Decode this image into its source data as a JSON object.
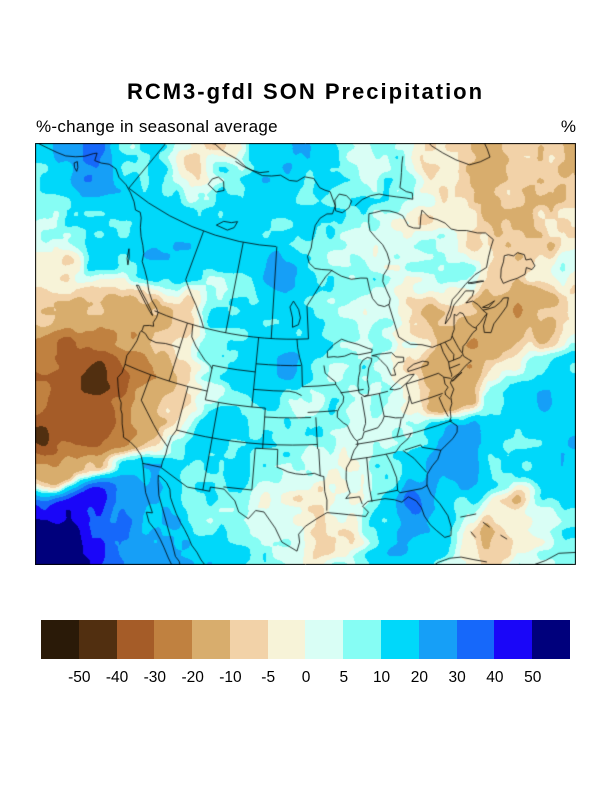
{
  "title": "RCM3-gfdl SON Precipitation",
  "subtitle": "%-change in seasonal average",
  "unit_label": "%",
  "colorbar": {
    "tick_labels": [
      "-50",
      "-40",
      "-30",
      "-20",
      "-10",
      "-5",
      "0",
      "5",
      "10",
      "20",
      "30",
      "40",
      "50"
    ],
    "colors": [
      "#2a1a08",
      "#512f10",
      "#a55c28",
      "#c08140",
      "#d8ad6d",
      "#f2d2a8",
      "#f7f3d8",
      "#d9fef5",
      "#86fdf4",
      "#00d8fa",
      "#169ff7",
      "#1668fa",
      "#1a06f8",
      "#00007c"
    ]
  },
  "chart_data": {
    "type": "heatmap",
    "title": "RCM3-gfdl SON Precipitation",
    "subtitle": "%-change in seasonal average",
    "units": "%",
    "region": "North America (Lambert conformal conic view)",
    "levels": [
      -50,
      -40,
      -30,
      -20,
      -10,
      -5,
      0,
      5,
      10,
      20,
      30,
      40,
      50
    ],
    "palette": [
      "#2a1a08",
      "#512f10",
      "#a55c28",
      "#c08140",
      "#d8ad6d",
      "#f2d2a8",
      "#f7f3d8",
      "#d9fef5",
      "#86fdf4",
      "#00d8fa",
      "#169ff7",
      "#1668fa",
      "#1a06f8",
      "#00007c"
    ],
    "grid": {
      "nx": 20,
      "ny": 14,
      "description": "percent change in seasonal-average precipitation, coarse grid spanning the plot window left-to-right, top-to-bottom",
      "values": [
        [
          12,
          25,
          30,
          12,
          10,
          6,
          -3,
          -3,
          15,
          22,
          12,
          6,
          8,
          4,
          -5,
          -6,
          -10,
          -8,
          -10,
          -15
        ],
        [
          12,
          18,
          28,
          12,
          10,
          6,
          -2,
          8,
          18,
          15,
          10,
          6,
          6,
          3,
          -5,
          -8,
          -12,
          -10,
          -8,
          -12
        ],
        [
          8,
          10,
          15,
          14,
          16,
          14,
          10,
          14,
          16,
          14,
          12,
          8,
          5,
          3,
          -4,
          -6,
          -8,
          -10,
          -6,
          -8
        ],
        [
          6,
          8,
          12,
          16,
          18,
          16,
          14,
          16,
          14,
          12,
          10,
          6,
          4,
          2,
          3,
          -5,
          -6,
          -4,
          -8,
          -6
        ],
        [
          0,
          -6,
          8,
          14,
          12,
          15,
          12,
          12,
          16,
          22,
          12,
          8,
          6,
          4,
          6,
          8,
          -4,
          -6,
          4,
          -5
        ],
        [
          -6,
          -10,
          -14,
          -12,
          -8,
          -5,
          6,
          10,
          14,
          15,
          10,
          6,
          4,
          -5,
          -8,
          -6,
          -12,
          -16,
          -8,
          -4
        ],
        [
          -22,
          -30,
          -30,
          -22,
          -12,
          -6,
          4,
          10,
          15,
          15,
          12,
          8,
          6,
          -5,
          -14,
          -16,
          -16,
          -10,
          -8,
          -4
        ],
        [
          -28,
          -35,
          -38,
          -28,
          -15,
          -6,
          6,
          12,
          15,
          30,
          10,
          6,
          2,
          -4,
          -16,
          -22,
          -12,
          -4,
          8,
          12
        ],
        [
          -30,
          -35,
          -42,
          -30,
          -18,
          -8,
          5,
          8,
          10,
          8,
          5,
          3,
          3,
          0,
          -12,
          -14,
          5,
          15,
          20,
          10
        ],
        [
          -42,
          -35,
          -30,
          -20,
          -10,
          2,
          15,
          12,
          10,
          8,
          5,
          3,
          6,
          10,
          18,
          22,
          10,
          8,
          15,
          18
        ],
        [
          -15,
          -12,
          -5,
          10,
          14,
          12,
          12,
          10,
          5,
          5,
          5,
          2,
          8,
          10,
          22,
          28,
          15,
          12,
          15,
          12
        ],
        [
          40,
          50,
          45,
          25,
          15,
          12,
          8,
          8,
          2,
          0,
          -4,
          0,
          10,
          35,
          15,
          8,
          -4,
          -8,
          6,
          10
        ],
        [
          60,
          55,
          40,
          30,
          18,
          25,
          12,
          10,
          5,
          2,
          -6,
          -8,
          12,
          22,
          12,
          -6,
          -8,
          -6,
          4,
          8
        ],
        [
          55,
          58,
          45,
          35,
          25,
          20,
          15,
          10,
          8,
          6,
          -4,
          4,
          15,
          12,
          8,
          -4,
          -6,
          2,
          8,
          6
        ]
      ]
    }
  }
}
